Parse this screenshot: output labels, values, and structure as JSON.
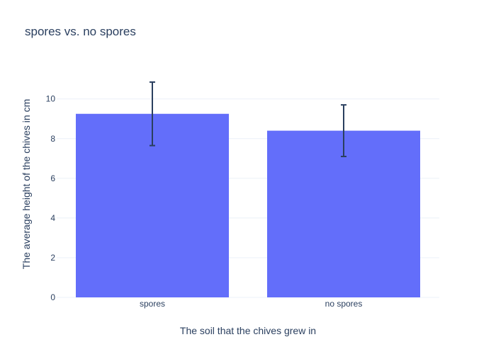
{
  "chart_data": {
    "type": "bar",
    "title": "spores vs. no spores",
    "xlabel": "The soil that the chives grew in",
    "ylabel": "The average height of the chives in cm",
    "categories": [
      "spores",
      "no spores"
    ],
    "values": [
      9.25,
      8.4
    ],
    "error_low": [
      7.65,
      7.1
    ],
    "error_high": [
      10.85,
      9.7
    ],
    "ylim": [
      0,
      10.99
    ],
    "yticks": [
      0,
      2,
      4,
      6,
      8,
      10
    ],
    "grid": true,
    "bar_color": "#636efa",
    "error_color": "#2a3f5f"
  }
}
